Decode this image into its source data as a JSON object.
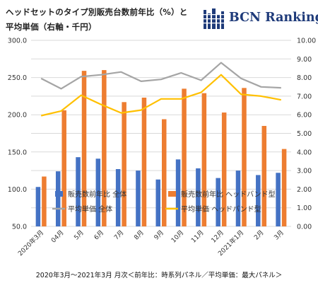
{
  "title_line1": "ヘッドセットのタイプ別販売台数前年比（%）と",
  "title_line2": "平均単価（右軸・千円）",
  "logo_text": "BCN Ranking",
  "footer": "2020年3月～2021年3月 月次＜前年比：時系列パネル／平均単価：最大パネル＞",
  "colors": {
    "bar_all": "#4472C4",
    "bar_band": "#ED7D31",
    "line_all": "#A5A5A5",
    "line_band": "#FFC000",
    "logo_navy": "#1f3b7a"
  },
  "chart_data": {
    "type": "bar",
    "categories": [
      "2020年3月",
      "04月",
      "5月",
      "6月",
      "7月",
      "8月",
      "9月",
      "10月",
      "11月",
      "12月",
      "2021年1月",
      "2月",
      "3月"
    ],
    "left_axis": {
      "ylim": [
        50,
        300
      ],
      "ticks": [
        "50.0",
        "100.0",
        "150.0",
        "200.0",
        "250.0",
        "300.0"
      ]
    },
    "right_axis": {
      "ylim": [
        0,
        10
      ],
      "ticks": [
        "0.00",
        "1.00",
        "2.00",
        "3.00",
        "4.00",
        "5.00",
        "6.00",
        "7.00",
        "8.00",
        "9.00",
        "10.00"
      ]
    },
    "grid": true,
    "legend_position": "bottom-inside",
    "series": [
      {
        "name": "販売数前年比 全体",
        "type": "bar",
        "axis": "left",
        "color": "#4472C4",
        "values": [
          103,
          124,
          143,
          141,
          127,
          125,
          113,
          140,
          128,
          115,
          125,
          119,
          122
        ]
      },
      {
        "name": "販売数前年比 ヘッドバンド型",
        "type": "bar",
        "axis": "left",
        "color": "#ED7D31",
        "values": [
          117,
          206,
          259,
          260,
          217,
          223,
          194,
          235,
          229,
          203,
          236,
          185,
          154
        ]
      },
      {
        "name": "平均単価 全体",
        "type": "line",
        "axis": "right",
        "color": "#A5A5A5",
        "values": [
          7.95,
          7.4,
          8.05,
          8.15,
          8.3,
          7.8,
          7.9,
          8.25,
          7.85,
          8.8,
          7.95,
          7.5,
          7.45
        ]
      },
      {
        "name": "平均単価 ヘッドバンド型",
        "type": "line",
        "axis": "right",
        "color": "#FFC000",
        "values": [
          5.95,
          6.2,
          7.05,
          6.55,
          6.1,
          6.25,
          6.85,
          6.85,
          7.2,
          8.15,
          7.1,
          7.0,
          6.8
        ]
      }
    ]
  }
}
